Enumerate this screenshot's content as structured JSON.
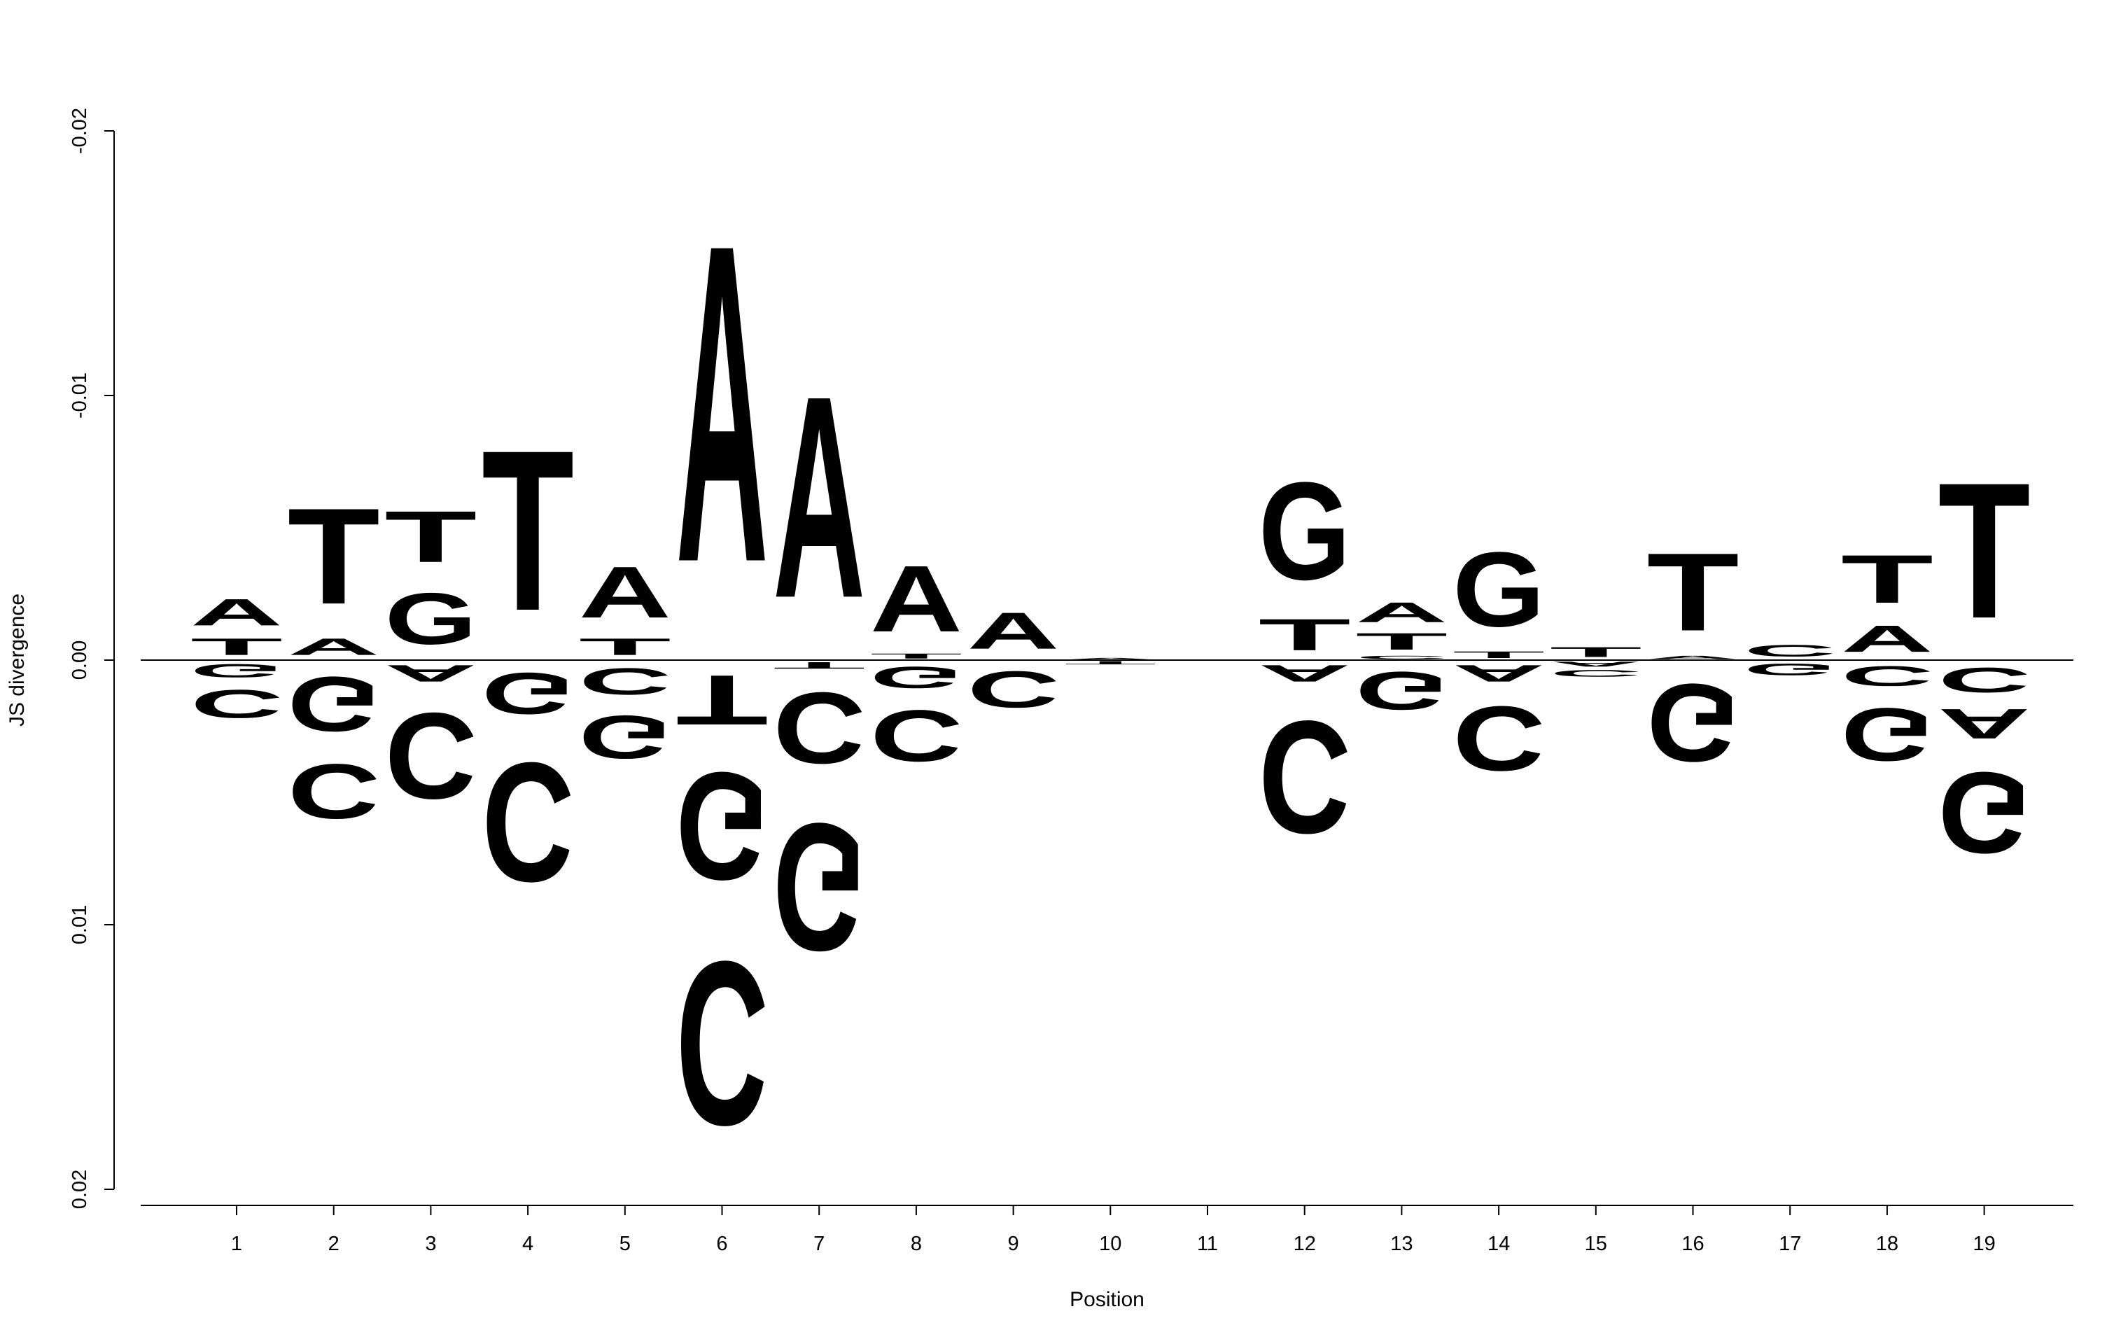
{
  "chart_data": {
    "type": "sequence-logo",
    "xlabel": "Position",
    "ylabel": "JS divergence",
    "y_ticks": [
      -0.02,
      -0.01,
      0.0,
      0.01,
      0.02
    ],
    "y_tick_labels": [
      "-0.02",
      "-0.01",
      "0.00",
      "0.01",
      "0.02"
    ],
    "ylim": [
      -0.021,
      0.0205
    ],
    "y_axis_inverted": true,
    "x_ticks": [
      1,
      2,
      3,
      4,
      5,
      6,
      7,
      8,
      9,
      10,
      11,
      12,
      13,
      14,
      15,
      16,
      17,
      18,
      19
    ],
    "x_tick_labels": [
      "1",
      "2",
      "3",
      "4",
      "5",
      "6",
      "7",
      "8",
      "9",
      "10",
      "11",
      "12",
      "13",
      "14",
      "15",
      "16",
      "17",
      "18",
      "19"
    ],
    "colors": {
      "A": "#008000",
      "C": "#0000ff",
      "G": "#ffa500",
      "T": "#ff0000"
    },
    "positions": [
      {
        "pos": 1,
        "above": [
          [
            "T",
            0.001
          ],
          [
            "A",
            0.0016
          ]
        ],
        "below": [
          [
            "G",
            0.0008
          ],
          [
            "C",
            0.0017
          ]
        ]
      },
      {
        "pos": 2,
        "above": [
          [
            "A",
            0.001
          ],
          [
            "T",
            0.0058
          ]
        ],
        "below": [
          [
            "G",
            0.0033
          ],
          [
            "C",
            0.0033
          ]
        ]
      },
      {
        "pos": 3,
        "above": [
          [
            "G",
            0.0031
          ],
          [
            "T",
            0.0031
          ]
        ],
        "below": [
          [
            "A",
            0.001
          ],
          [
            "C",
            0.0052
          ]
        ]
      },
      {
        "pos": 4,
        "above": [
          [
            "T",
            0.0097
          ]
        ],
        "below": [
          [
            "G",
            0.0025
          ],
          [
            "C",
            0.0072
          ]
        ]
      },
      {
        "pos": 5,
        "above": [
          [
            "T",
            0.001
          ],
          [
            "A",
            0.0031
          ]
        ],
        "below": [
          [
            "C",
            0.0016
          ],
          [
            "G",
            0.0026
          ]
        ]
      },
      {
        "pos": 6,
        "above": [
          [
            "A",
            0.0192
          ]
        ],
        "below": [
          [
            "T",
            0.003
          ],
          [
            "G",
            0.0065
          ],
          [
            "C",
            0.0099
          ]
        ]
      },
      {
        "pos": 7,
        "above": [
          [
            "A",
            0.0122
          ]
        ],
        "below": [
          [
            "T",
            0.0004
          ],
          [
            "C",
            0.0043
          ],
          [
            "G",
            0.0077
          ]
        ]
      },
      {
        "pos": 8,
        "above": [
          [
            "T",
            0.0003
          ],
          [
            "A",
            0.004
          ]
        ],
        "below": [
          [
            "G",
            0.0013
          ],
          [
            "C",
            0.0031
          ]
        ]
      },
      {
        "pos": 9,
        "above": [
          [
            "A",
            0.0022
          ]
        ],
        "below": [
          [
            "C",
            0.0022
          ]
        ]
      },
      {
        "pos": 10,
        "above": [
          [
            "A",
            0.0001
          ]
        ],
        "below": [
          [
            "T",
            0.0002
          ]
        ]
      },
      {
        "pos": 11,
        "above": [],
        "below": []
      },
      {
        "pos": 12,
        "above": [
          [
            "T",
            0.0019
          ],
          [
            "G",
            0.0059
          ]
        ],
        "below": [
          [
            "A",
            0.001
          ],
          [
            "C",
            0.0068
          ]
        ]
      },
      {
        "pos": 13,
        "above": [
          [
            "C",
            0.0002
          ],
          [
            "T",
            0.001
          ],
          [
            "A",
            0.0012
          ]
        ],
        "below": [
          [
            "G",
            0.0023
          ]
        ]
      },
      {
        "pos": 14,
        "above": [
          [
            "T",
            0.0004
          ],
          [
            "G",
            0.0045
          ]
        ],
        "below": [
          [
            "A",
            0.001
          ],
          [
            "C",
            0.0039
          ]
        ]
      },
      {
        "pos": 15,
        "above": [
          [
            "T",
            0.0006
          ]
        ],
        "below": [
          [
            "A",
            0.0003
          ],
          [
            "C",
            0.0004
          ]
        ]
      },
      {
        "pos": 16,
        "above": [
          [
            "A",
            0.0002
          ],
          [
            "T",
            0.0047
          ]
        ],
        "below": [
          [
            "G",
            0.0047
          ]
        ]
      },
      {
        "pos": 17,
        "above": [
          [
            "C",
            0.0007
          ]
        ],
        "below": [
          [
            "G",
            0.0007
          ]
        ]
      },
      {
        "pos": 18,
        "above": [
          [
            "A",
            0.0016
          ],
          [
            "T",
            0.0029
          ]
        ],
        "below": [
          [
            "C",
            0.0012
          ],
          [
            "G",
            0.0032
          ]
        ]
      },
      {
        "pos": 19,
        "above": [
          [
            "T",
            0.0082
          ]
        ],
        "below": [
          [
            "C",
            0.0015
          ],
          [
            "A",
            0.0018
          ],
          [
            "G",
            0.0049
          ]
        ]
      }
    ]
  }
}
